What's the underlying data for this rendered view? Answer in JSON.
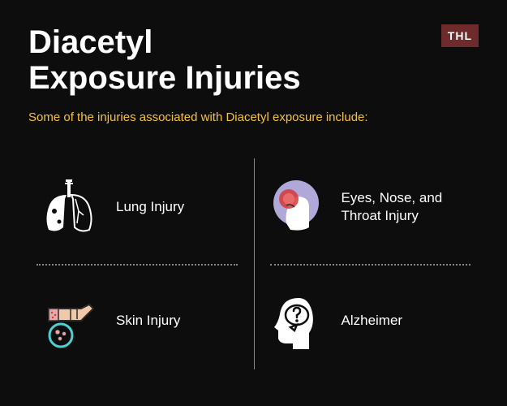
{
  "logo": {
    "text": "THL",
    "bg": "#6d2b2b",
    "fg": "#ffffff"
  },
  "title": "Diacetyl\nExposure Injuries",
  "title_fontsize": 40,
  "title_color": "#ffffff",
  "subtitle": "Some of the injuries associated with Diacetyl exposure include:",
  "subtitle_color": "#f4c13a",
  "subtitle_fontsize": 15,
  "background_color": "#0d0d0d",
  "divider_color": "#888888",
  "items": [
    {
      "label": "Lung Injury",
      "icon": "lungs"
    },
    {
      "label": "Eyes, Nose, and Throat Injury",
      "icon": "person-cough"
    },
    {
      "label": "Skin Injury",
      "icon": "hand-rash"
    },
    {
      "label": "Alzheimer",
      "icon": "head-question"
    }
  ],
  "label_color": "#ffffff",
  "label_fontsize": 17,
  "icon_colors": {
    "white": "#ffffff",
    "red": "#d73838",
    "lightred": "#e86a6a",
    "pink": "#e8a8a8",
    "skin": "#f0c9a8",
    "purple": "#b0a8d8",
    "teal": "#4dd0d0",
    "dark": "#2a2a2a"
  }
}
